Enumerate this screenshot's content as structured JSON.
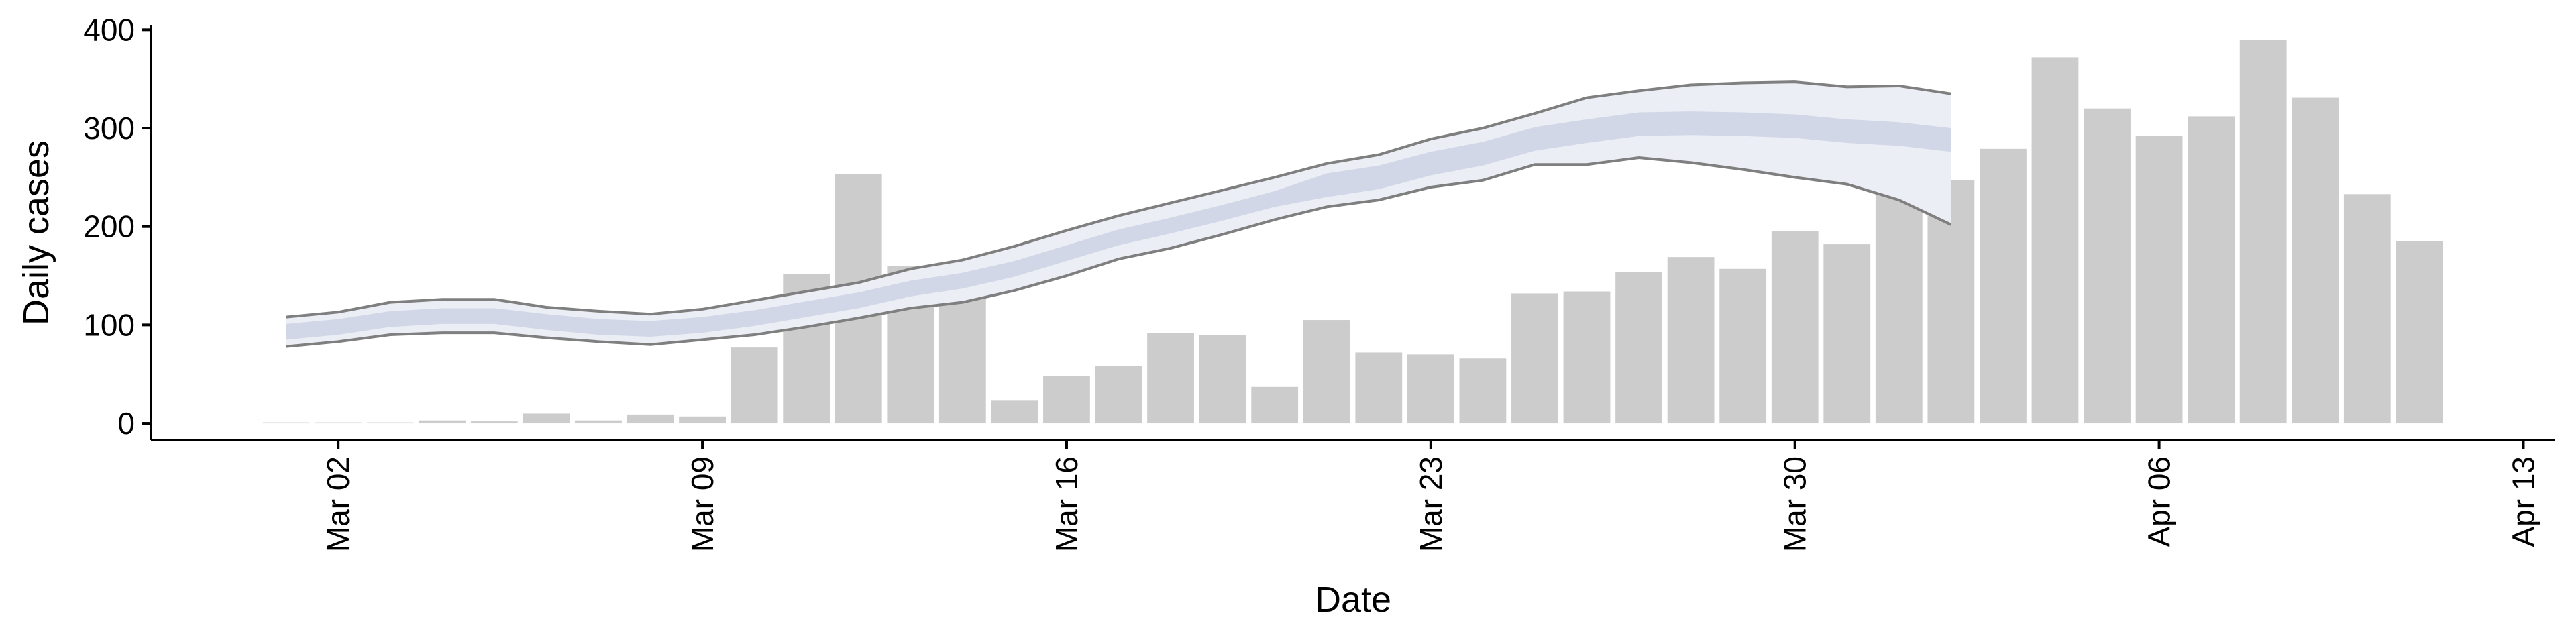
{
  "chart_data": {
    "type": "bar",
    "xlabel": "Date",
    "ylabel": "Daily cases",
    "x": [
      1,
      2,
      3,
      4,
      5,
      6,
      7,
      8,
      9,
      10,
      11,
      12,
      13,
      14,
      15,
      16,
      17,
      18,
      19,
      20,
      21,
      22,
      23,
      24,
      25,
      26,
      27,
      28,
      29,
      30,
      31,
      32,
      33,
      34,
      35,
      36,
      37,
      38,
      39,
      40,
      41,
      42
    ],
    "values": [
      1,
      1,
      1,
      3,
      2,
      10,
      3,
      9,
      7,
      77,
      152,
      253,
      160,
      130,
      23,
      48,
      58,
      92,
      90,
      37,
      105,
      72,
      70,
      66,
      132,
      134,
      154,
      169,
      157,
      195,
      182,
      283,
      247,
      279,
      372,
      320,
      292,
      312,
      390,
      331,
      233,
      185
    ],
    "color": "#cccccc",
    "band": {
      "x": [
        1,
        2,
        3,
        4,
        5,
        6,
        7,
        8,
        9,
        10,
        11,
        12,
        13,
        14,
        15,
        16,
        17,
        18,
        19,
        20,
        21,
        22,
        23,
        24,
        25,
        26,
        27,
        28,
        29,
        30,
        31,
        32,
        33
      ],
      "lo90": [
        78,
        83,
        90,
        92,
        92,
        87,
        83,
        80,
        85,
        90,
        98,
        107,
        117,
        123,
        135,
        150,
        167,
        178,
        192,
        207,
        220,
        227,
        240,
        247,
        263,
        263,
        270,
        265,
        258,
        250,
        243,
        227,
        202
      ],
      "hi90": [
        108,
        113,
        123,
        126,
        126,
        118,
        114,
        111,
        116,
        125,
        134,
        143,
        157,
        166,
        180,
        196,
        211,
        224,
        237,
        250,
        264,
        273,
        289,
        300,
        315,
        331,
        338,
        344,
        346,
        347,
        342,
        343,
        335
      ],
      "lo50": [
        85,
        90,
        98,
        101,
        101,
        95,
        90,
        88,
        92,
        99,
        108,
        117,
        129,
        137,
        149,
        165,
        181,
        193,
        206,
        220,
        230,
        238,
        252,
        262,
        277,
        285,
        292,
        293,
        292,
        290,
        285,
        282,
        276
      ],
      "hi50": [
        101,
        106,
        114,
        117,
        117,
        111,
        106,
        104,
        108,
        115,
        124,
        133,
        145,
        153,
        165,
        181,
        197,
        209,
        222,
        236,
        254,
        262,
        276,
        286,
        301,
        309,
        316,
        317,
        316,
        314,
        309,
        306,
        300
      ],
      "line_color": "#7f7f7f",
      "outer_fill": "#eceef5",
      "inner_fill": "#cdd2e4"
    },
    "xlim": [
      -1.6,
      44.6
    ],
    "ylim": [
      -17,
      405
    ],
    "xticks": [
      {
        "value": 2,
        "label": "Mar 02"
      },
      {
        "value": 9,
        "label": "Mar 09"
      },
      {
        "value": 16,
        "label": "Mar 16"
      },
      {
        "value": 23,
        "label": "Mar 23"
      },
      {
        "value": 30,
        "label": "Mar 30"
      },
      {
        "value": 37,
        "label": "Apr 06"
      },
      {
        "value": 44,
        "label": "Apr 13"
      }
    ],
    "yticks": [
      0,
      100,
      200,
      300,
      400
    ]
  }
}
